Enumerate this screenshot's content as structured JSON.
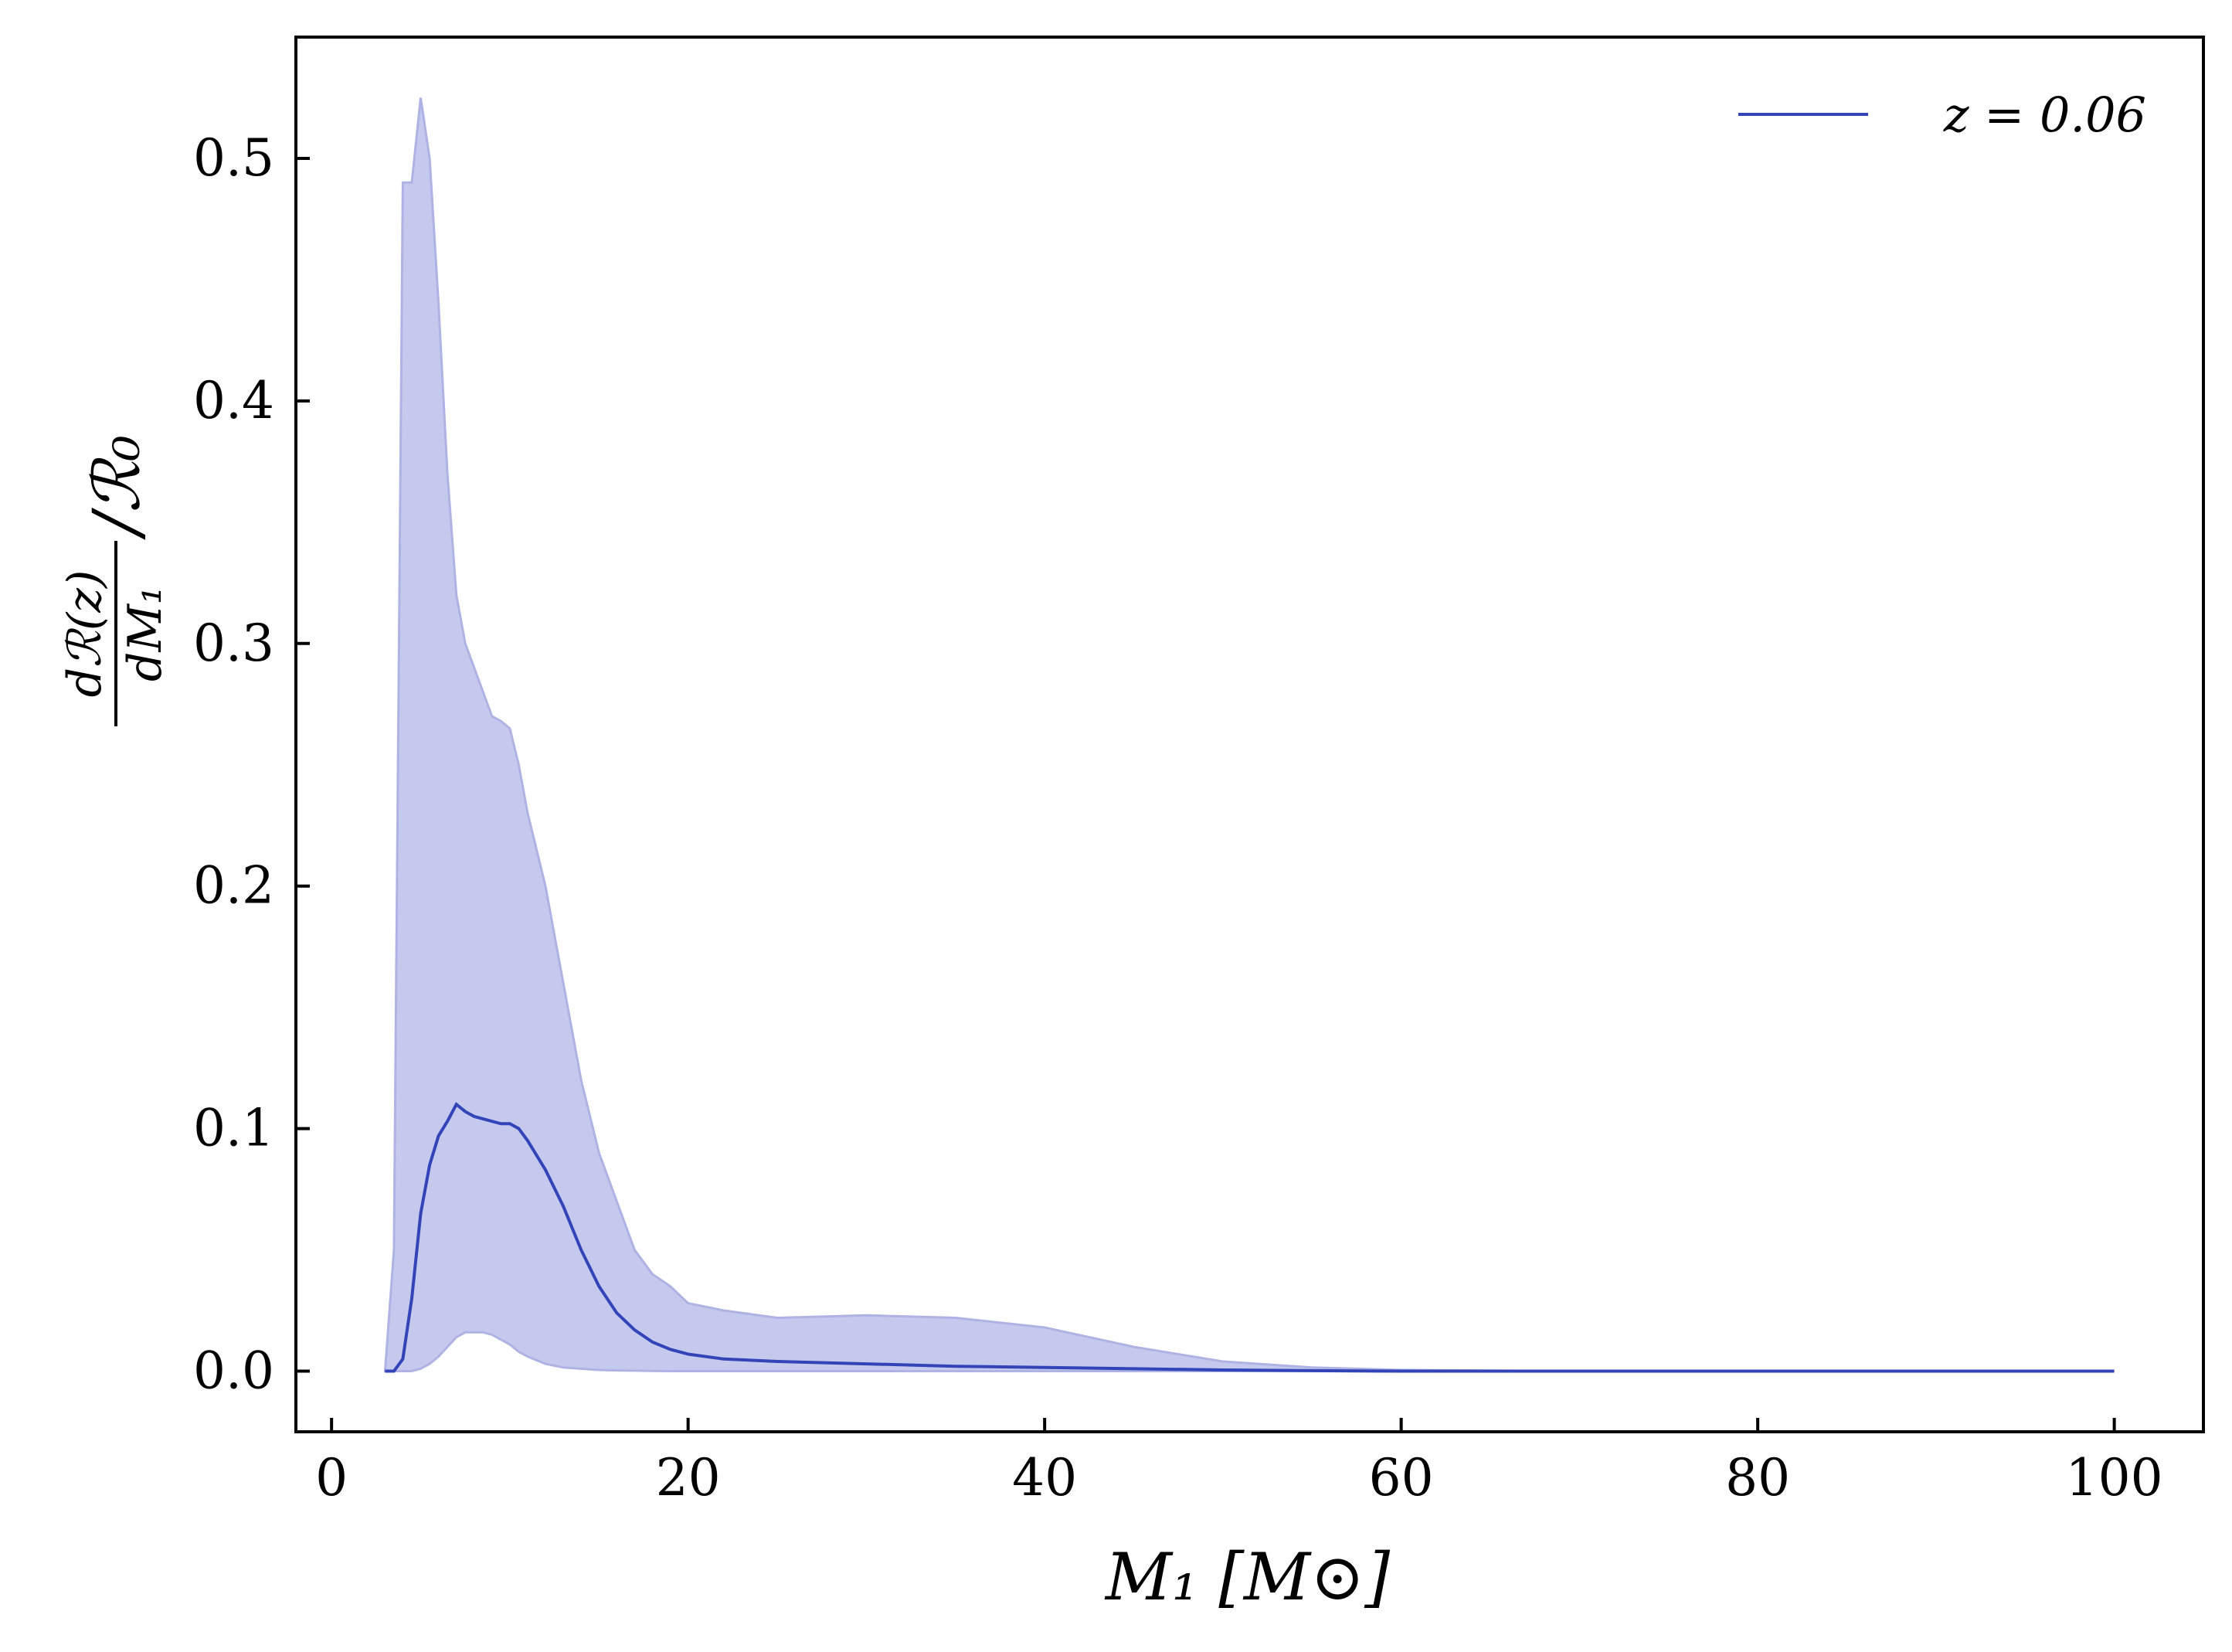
{
  "chart_data": {
    "type": "line",
    "title": "",
    "xlabel": "M₁ [M⊙]",
    "ylabel": {
      "numerator": "dℛ(z)",
      "denominator": "dM₁",
      "suffix": "/ℛ₀"
    },
    "xlim": [
      -2,
      105
    ],
    "ylim": [
      -0.025,
      0.55
    ],
    "xticks": [
      0,
      20,
      40,
      60,
      80,
      100
    ],
    "xtick_labels": [
      "0",
      "20",
      "40",
      "60",
      "80",
      "100"
    ],
    "yticks": [
      0.0,
      0.1,
      0.2,
      0.3,
      0.4,
      0.5
    ],
    "ytick_labels": [
      "0.0",
      "0.1",
      "0.2",
      "0.3",
      "0.4",
      "0.5"
    ],
    "grid": false,
    "legend_position": "top-right",
    "colors": {
      "line": "#3344b8",
      "band": "#c6c9ee",
      "band_edge": "#aeb3e4"
    },
    "series": [
      {
        "name": "z = 0.06",
        "x": [
          3,
          3.5,
          4,
          4.5,
          5,
          5.5,
          6,
          6.5,
          7,
          7.5,
          8,
          8.5,
          9,
          9.5,
          10,
          10.5,
          11,
          12,
          13,
          14,
          15,
          16,
          17,
          18,
          19,
          20,
          22,
          25,
          30,
          35,
          40,
          45,
          50,
          55,
          60,
          70,
          80,
          90,
          100
        ],
        "y": [
          0.0,
          0.0,
          0.005,
          0.03,
          0.065,
          0.085,
          0.097,
          0.103,
          0.11,
          0.107,
          0.105,
          0.104,
          0.103,
          0.102,
          0.102,
          0.1,
          0.095,
          0.083,
          0.068,
          0.05,
          0.035,
          0.024,
          0.017,
          0.012,
          0.009,
          0.007,
          0.005,
          0.004,
          0.003,
          0.002,
          0.0015,
          0.001,
          0.0005,
          0.0002,
          0.0,
          0.0,
          0.0,
          0.0,
          0.0
        ]
      }
    ],
    "band": {
      "x": [
        3,
        3.5,
        4,
        4.5,
        5,
        5.5,
        6,
        6.5,
        7,
        7.5,
        8,
        8.5,
        9,
        9.5,
        10,
        10.5,
        11,
        12,
        13,
        14,
        15,
        16,
        17,
        18,
        19,
        20,
        22,
        25,
        30,
        35,
        40,
        45,
        50,
        55,
        60,
        70,
        80,
        90,
        100
      ],
      "upper": [
        0.0,
        0.05,
        0.49,
        0.49,
        0.525,
        0.5,
        0.44,
        0.37,
        0.32,
        0.3,
        0.29,
        0.28,
        0.27,
        0.268,
        0.265,
        0.25,
        0.23,
        0.2,
        0.16,
        0.12,
        0.09,
        0.07,
        0.05,
        0.04,
        0.035,
        0.028,
        0.025,
        0.022,
        0.023,
        0.022,
        0.018,
        0.01,
        0.004,
        0.0015,
        0.0005,
        0.0,
        0.0,
        0.0,
        0.0
      ],
      "lower": [
        0.0,
        0.0,
        0.0,
        0.0,
        0.001,
        0.003,
        0.006,
        0.01,
        0.014,
        0.016,
        0.016,
        0.016,
        0.015,
        0.013,
        0.011,
        0.008,
        0.006,
        0.003,
        0.0015,
        0.001,
        0.0005,
        0.0003,
        0.0002,
        0.0001,
        0.0,
        0.0,
        0.0,
        0.0,
        0.0,
        0.0,
        0.0,
        0.0,
        0.0,
        0.0,
        0.0,
        0.0,
        0.0,
        0.0,
        0.0
      ]
    }
  }
}
